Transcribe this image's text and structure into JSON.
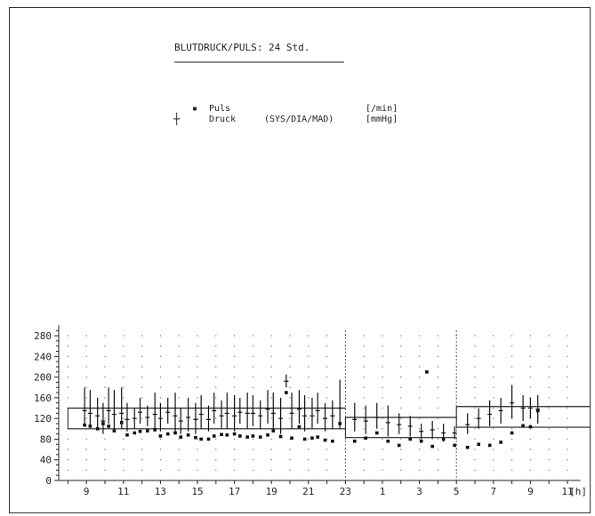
{
  "title": "BLUTDRUCK/PULS: 24 Std.",
  "legend": {
    "pulse": {
      "symbol": "▪",
      "label": "Puls",
      "unit": "[/min]"
    },
    "pressure": {
      "symbol": "┼",
      "label": "Druck",
      "detail": "(SYS/DIA/MAD)",
      "unit": "[mmHg]"
    }
  },
  "chart_data": {
    "type": "scatter",
    "title": "BLUTDRUCK/PULS: 24 Std.",
    "x_unit": "[h]",
    "x_ticks": [
      "9",
      "11",
      "13",
      "15",
      "17",
      "19",
      "21",
      "23",
      "1",
      "3",
      "5",
      "7",
      "9",
      "11"
    ],
    "y_ticks": [
      0,
      40,
      80,
      120,
      160,
      200,
      240,
      280
    ],
    "ylim": [
      0,
      300
    ],
    "grid": "dotted",
    "period_separators_h": [
      23,
      5
    ],
    "reference_lines": [
      {
        "from_h": 8,
        "to_h": 23,
        "upper": 140,
        "lower": 100
      },
      {
        "from_h": 23,
        "to_h": 29,
        "upper": 122,
        "lower": 83
      },
      {
        "from_h": 29,
        "to_h": 36.2,
        "upper": 143,
        "lower": 103
      }
    ],
    "series": [
      {
        "name": "Druck",
        "points": [
          {
            "h": 8.9,
            "sys": 180,
            "dia": 110,
            "mad": 135
          },
          {
            "h": 9.2,
            "sys": 175,
            "dia": 105,
            "mad": 130
          },
          {
            "h": 9.6,
            "sys": 160,
            "dia": 100,
            "mad": 125
          },
          {
            "h": 9.9,
            "sys": 150,
            "dia": 90,
            "mad": 115
          },
          {
            "h": 10.2,
            "sys": 180,
            "dia": 110,
            "mad": 135
          },
          {
            "h": 10.5,
            "sys": 175,
            "dia": 100,
            "mad": 128
          },
          {
            "h": 10.9,
            "sys": 180,
            "dia": 100,
            "mad": 130
          },
          {
            "h": 11.2,
            "sys": 150,
            "dia": 95,
            "mad": 118
          },
          {
            "h": 11.6,
            "sys": 140,
            "dia": 100,
            "mad": 120
          },
          {
            "h": 11.9,
            "sys": 160,
            "dia": 110,
            "mad": 132
          },
          {
            "h": 12.3,
            "sys": 145,
            "dia": 105,
            "mad": 122
          },
          {
            "h": 12.7,
            "sys": 170,
            "dia": 100,
            "mad": 128
          },
          {
            "h": 13.0,
            "sys": 150,
            "dia": 95,
            "mad": 120
          },
          {
            "h": 13.4,
            "sys": 160,
            "dia": 110,
            "mad": 132
          },
          {
            "h": 13.8,
            "sys": 170,
            "dia": 90,
            "mad": 125
          },
          {
            "h": 14.1,
            "sys": 140,
            "dia": 90,
            "mad": 115
          },
          {
            "h": 14.5,
            "sys": 160,
            "dia": 95,
            "mad": 122
          },
          {
            "h": 14.9,
            "sys": 150,
            "dia": 90,
            "mad": 118
          },
          {
            "h": 15.2,
            "sys": 165,
            "dia": 100,
            "mad": 128
          },
          {
            "h": 15.6,
            "sys": 145,
            "dia": 95,
            "mad": 118
          },
          {
            "h": 15.9,
            "sys": 170,
            "dia": 110,
            "mad": 135
          },
          {
            "h": 16.3,
            "sys": 155,
            "dia": 100,
            "mad": 125
          },
          {
            "h": 16.6,
            "sys": 170,
            "dia": 100,
            "mad": 130
          },
          {
            "h": 17.0,
            "sys": 165,
            "dia": 95,
            "mad": 125
          },
          {
            "h": 17.3,
            "sys": 160,
            "dia": 110,
            "mad": 132
          },
          {
            "h": 17.7,
            "sys": 170,
            "dia": 100,
            "mad": 130
          },
          {
            "h": 18.0,
            "sys": 165,
            "dia": 105,
            "mad": 130
          },
          {
            "h": 18.4,
            "sys": 155,
            "dia": 100,
            "mad": 125
          },
          {
            "h": 18.8,
            "sys": 175,
            "dia": 110,
            "mad": 138
          },
          {
            "h": 19.1,
            "sys": 170,
            "dia": 100,
            "mad": 130
          },
          {
            "h": 19.5,
            "sys": 160,
            "dia": 90,
            "mad": 120
          },
          {
            "h": 19.8,
            "sys": 205,
            "dia": 180,
            "mad": 192
          },
          {
            "h": 20.1,
            "sys": 170,
            "dia": 100,
            "mad": 130
          },
          {
            "h": 20.5,
            "sys": 175,
            "dia": 110,
            "mad": 138
          },
          {
            "h": 20.8,
            "sys": 165,
            "dia": 95,
            "mad": 125
          },
          {
            "h": 21.2,
            "sys": 160,
            "dia": 100,
            "mad": 125
          },
          {
            "h": 21.5,
            "sys": 170,
            "dia": 110,
            "mad": 135
          },
          {
            "h": 21.9,
            "sys": 150,
            "dia": 95,
            "mad": 120
          },
          {
            "h": 22.3,
            "sys": 155,
            "dia": 100,
            "mad": 125
          },
          {
            "h": 22.7,
            "sys": 195,
            "dia": 100,
            "mad": 140
          },
          {
            "h": 23.5,
            "sys": 150,
            "dia": 95,
            "mad": 118
          },
          {
            "h": 24.1,
            "sys": 145,
            "dia": 90,
            "mad": 115
          },
          {
            "h": 24.7,
            "sys": 150,
            "dia": 100,
            "mad": 122
          },
          {
            "h": 25.3,
            "sys": 145,
            "dia": 85,
            "mad": 112
          },
          {
            "h": 25.9,
            "sys": 130,
            "dia": 90,
            "mad": 108
          },
          {
            "h": 26.5,
            "sys": 125,
            "dia": 85,
            "mad": 105
          },
          {
            "h": 27.1,
            "sys": 110,
            "dia": 80,
            "mad": 95
          },
          {
            "h": 27.7,
            "sys": 115,
            "dia": 80,
            "mad": 98
          },
          {
            "h": 28.3,
            "sys": 110,
            "dia": 75,
            "mad": 92
          },
          {
            "h": 28.9,
            "sys": 105,
            "dia": 80,
            "mad": 92
          },
          {
            "h": 29.6,
            "sys": 130,
            "dia": 90,
            "mad": 108
          },
          {
            "h": 30.2,
            "sys": 140,
            "dia": 100,
            "mad": 120
          },
          {
            "h": 30.8,
            "sys": 155,
            "dia": 105,
            "mad": 128
          },
          {
            "h": 31.4,
            "sys": 160,
            "dia": 110,
            "mad": 135
          },
          {
            "h": 32.0,
            "sys": 185,
            "dia": 120,
            "mad": 150
          },
          {
            "h": 32.6,
            "sys": 165,
            "dia": 115,
            "mad": 140
          },
          {
            "h": 33.0,
            "sys": 160,
            "dia": 120,
            "mad": 140
          },
          {
            "h": 33.4,
            "sys": 165,
            "dia": 110,
            "mad": 138
          }
        ]
      },
      {
        "name": "Puls",
        "points": [
          {
            "h": 8.9,
            "v": 107
          },
          {
            "h": 9.2,
            "v": 105
          },
          {
            "h": 9.6,
            "v": 100
          },
          {
            "h": 9.9,
            "v": 110
          },
          {
            "h": 10.2,
            "v": 105
          },
          {
            "h": 10.5,
            "v": 96
          },
          {
            "h": 10.9,
            "v": 112
          },
          {
            "h": 11.2,
            "v": 88
          },
          {
            "h": 11.6,
            "v": 92
          },
          {
            "h": 11.9,
            "v": 95
          },
          {
            "h": 12.3,
            "v": 96
          },
          {
            "h": 12.7,
            "v": 98
          },
          {
            "h": 13.0,
            "v": 86
          },
          {
            "h": 13.4,
            "v": 90
          },
          {
            "h": 13.8,
            "v": 92
          },
          {
            "h": 14.1,
            "v": 84
          },
          {
            "h": 14.5,
            "v": 88
          },
          {
            "h": 14.9,
            "v": 83
          },
          {
            "h": 15.2,
            "v": 80
          },
          {
            "h": 15.6,
            "v": 80
          },
          {
            "h": 15.9,
            "v": 86
          },
          {
            "h": 16.3,
            "v": 89
          },
          {
            "h": 16.6,
            "v": 88
          },
          {
            "h": 17.0,
            "v": 90
          },
          {
            "h": 17.3,
            "v": 86
          },
          {
            "h": 17.7,
            "v": 84
          },
          {
            "h": 18.0,
            "v": 86
          },
          {
            "h": 18.4,
            "v": 84
          },
          {
            "h": 18.8,
            "v": 88
          },
          {
            "h": 19.1,
            "v": 96
          },
          {
            "h": 19.5,
            "v": 85
          },
          {
            "h": 19.8,
            "v": 170
          },
          {
            "h": 20.1,
            "v": 82
          },
          {
            "h": 20.5,
            "v": 104
          },
          {
            "h": 20.8,
            "v": 80
          },
          {
            "h": 21.2,
            "v": 82
          },
          {
            "h": 21.5,
            "v": 84
          },
          {
            "h": 21.9,
            "v": 78
          },
          {
            "h": 22.3,
            "v": 76
          },
          {
            "h": 22.7,
            "v": 110
          },
          {
            "h": 23.5,
            "v": 76
          },
          {
            "h": 24.1,
            "v": 82
          },
          {
            "h": 24.7,
            "v": 92
          },
          {
            "h": 25.3,
            "v": 76
          },
          {
            "h": 25.9,
            "v": 68
          },
          {
            "h": 26.5,
            "v": 80
          },
          {
            "h": 27.1,
            "v": 76
          },
          {
            "h": 27.4,
            "v": 210
          },
          {
            "h": 27.7,
            "v": 66
          },
          {
            "h": 28.3,
            "v": 80
          },
          {
            "h": 28.9,
            "v": 68
          },
          {
            "h": 29.6,
            "v": 64
          },
          {
            "h": 30.2,
            "v": 70
          },
          {
            "h": 30.8,
            "v": 68
          },
          {
            "h": 31.4,
            "v": 74
          },
          {
            "h": 32.0,
            "v": 92
          },
          {
            "h": 32.6,
            "v": 106
          },
          {
            "h": 33.0,
            "v": 104
          },
          {
            "h": 33.4,
            "v": 135
          }
        ]
      }
    ]
  }
}
